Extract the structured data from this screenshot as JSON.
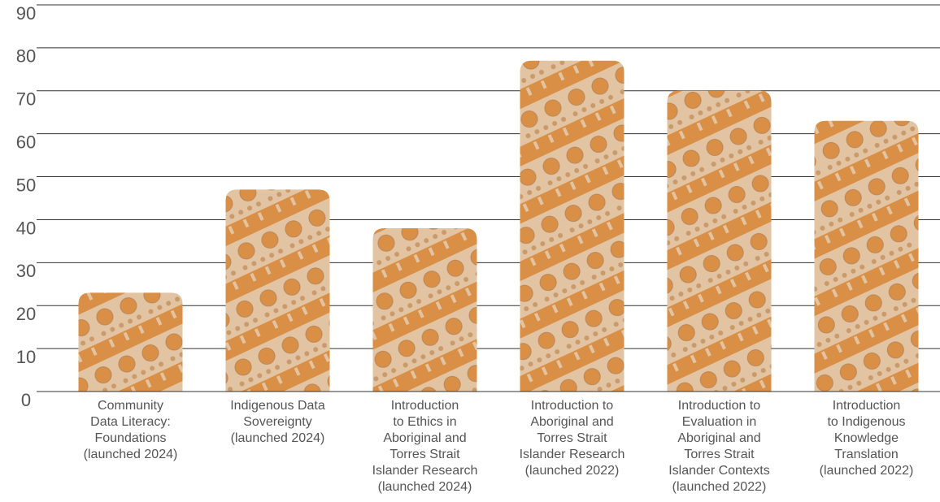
{
  "chart_data": {
    "type": "bar",
    "categories": [
      "Community\nData Literacy:\nFoundations\n(launched 2024)",
      "Indigenous Data\nSovereignty\n(launched 2024)",
      "Introduction\nto Ethics in\nAboriginal and\nTorres Strait\nIslander Research\n(launched 2024)",
      "Introduction to\nAboriginal and\nTorres Strait\nIslander Research\n(launched 2022)",
      "Introduction to\nEvaluation in\nAboriginal and\nTorres Strait\nIslander Contexts\n(launched 2022)",
      "Introduction\nto Indigenous\nKnowledge\nTranslation\n(launched 2022)"
    ],
    "values": [
      23,
      47,
      38,
      77,
      70,
      63
    ],
    "color": "#e2c3a2",
    "pattern_color": "#d98f45",
    "ylim": [
      0,
      90
    ],
    "yticks": [
      0,
      10,
      20,
      30,
      40,
      50,
      60,
      70,
      80,
      90
    ],
    "grid": true
  }
}
